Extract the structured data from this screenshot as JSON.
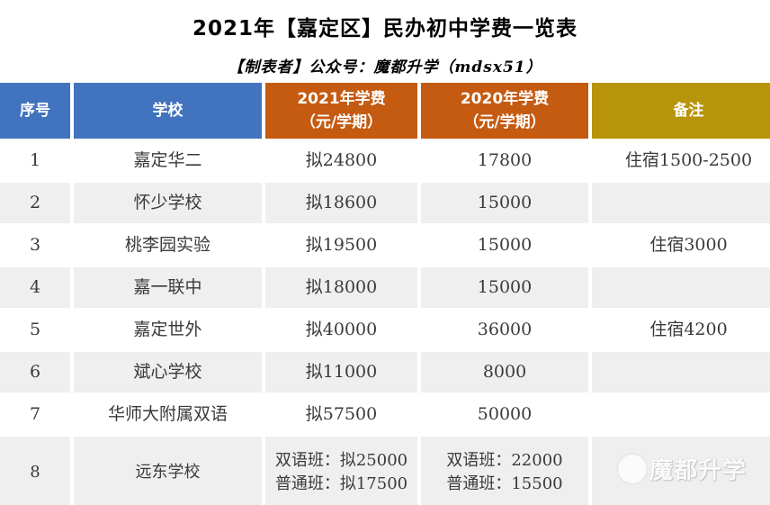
{
  "page": {
    "title": "2021年【嘉定区】民办初中学费一览表",
    "subtitle": "【制表者】公众号：魔都升学（mdsx51）"
  },
  "chart_data": {
    "type": "table",
    "title": "2021年【嘉定区】民办初中学费一览表",
    "columns": [
      {
        "label": "序号",
        "header_color": "blue"
      },
      {
        "label": "学校",
        "header_color": "blue"
      },
      {
        "label": "2021年学费\n（元/学期）",
        "header_color": "orange"
      },
      {
        "label": "2020年学费\n（元/学期）",
        "header_color": "orange"
      },
      {
        "label": "备注",
        "header_color": "gold"
      }
    ],
    "rows": [
      [
        "1",
        "嘉定华二",
        "拟24800",
        "17800",
        "住宿1500-2500"
      ],
      [
        "2",
        "怀少学校",
        "拟18600",
        "15000",
        ""
      ],
      [
        "3",
        "桃李园实验",
        "拟19500",
        "15000",
        "住宿3000"
      ],
      [
        "4",
        "嘉一联中",
        "拟18000",
        "15000",
        ""
      ],
      [
        "5",
        "嘉定世外",
        "拟40000",
        "36000",
        "住宿4200"
      ],
      [
        "6",
        "斌心学校",
        "拟11000",
        "8000",
        ""
      ],
      [
        "7",
        "华师大附属双语",
        "拟57500",
        "50000",
        ""
      ],
      [
        "8",
        "远东学校",
        "双语班：拟25000\n普通班：拟17500",
        "双语班：22000\n普通班：15500",
        ""
      ]
    ]
  },
  "watermark": {
    "text": "魔都升学"
  },
  "colors": {
    "header_blue": "#4173BE",
    "header_orange": "#C55A11",
    "header_gold": "#B8940A",
    "row_alt_gray": "#EFEFEF",
    "header_text": "#FFFFFF",
    "body_text": "#3A3A3A"
  }
}
